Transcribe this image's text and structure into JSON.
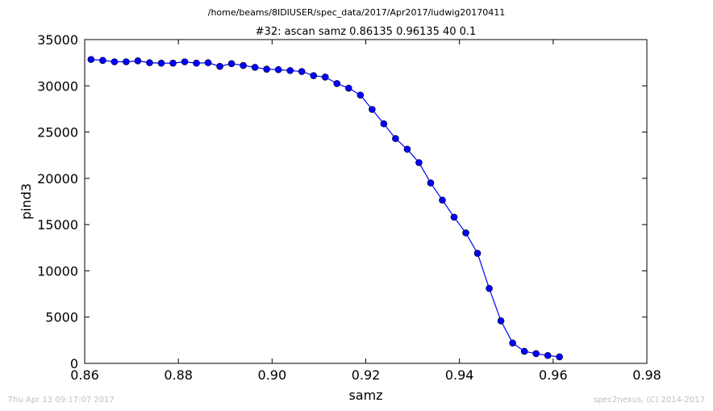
{
  "figure": {
    "suptitle": "/home/beams/8IDIUSER/spec_data/2017/Apr2017/ludwig20170411",
    "footer_left": "Thu Apr 13 09:17:07 2017",
    "footer_right": "spec2nexus, (C) 2014-2017"
  },
  "colors": {
    "series": "#0000ff",
    "footer_text": "#c0c0c0",
    "axes": "#000000"
  },
  "chart_data": {
    "type": "line",
    "title": "#32: ascan  samz 0.86135 0.96135  40 0.1",
    "xlabel": "samz",
    "ylabel": "pind3",
    "xlim": [
      0.86,
      0.98
    ],
    "ylim": [
      0,
      35000
    ],
    "xticks": [
      0.86,
      0.88,
      0.9,
      0.92,
      0.94,
      0.96,
      0.98
    ],
    "xtick_labels": [
      "0.86",
      "0.88",
      "0.90",
      "0.92",
      "0.94",
      "0.96",
      "0.98"
    ],
    "yticks": [
      0,
      5000,
      10000,
      15000,
      20000,
      25000,
      30000,
      35000
    ],
    "ytick_labels": [
      "0",
      "5000",
      "10000",
      "15000",
      "20000",
      "25000",
      "30000",
      "35000"
    ],
    "grid": false,
    "marker": "circle",
    "x": [
      0.86135,
      0.86385,
      0.86635,
      0.86885,
      0.87135,
      0.87385,
      0.87635,
      0.87885,
      0.88135,
      0.88385,
      0.88635,
      0.88885,
      0.89135,
      0.89385,
      0.89635,
      0.89885,
      0.90135,
      0.90385,
      0.90635,
      0.90885,
      0.91135,
      0.91385,
      0.91635,
      0.91885,
      0.92135,
      0.92385,
      0.92635,
      0.92885,
      0.93135,
      0.93385,
      0.93635,
      0.93885,
      0.94135,
      0.94385,
      0.94635,
      0.94885,
      0.95135,
      0.95385,
      0.95635,
      0.95885,
      0.96135
    ],
    "y": [
      32850,
      32750,
      32600,
      32600,
      32700,
      32500,
      32450,
      32450,
      32600,
      32450,
      32500,
      32100,
      32400,
      32200,
      32000,
      31800,
      31750,
      31650,
      31550,
      31100,
      30950,
      30250,
      29750,
      29000,
      27450,
      25900,
      24300,
      23150,
      21700,
      19500,
      17650,
      15800,
      14100,
      11900,
      8100,
      4600,
      2200,
      1300,
      1050,
      850,
      700
    ]
  }
}
